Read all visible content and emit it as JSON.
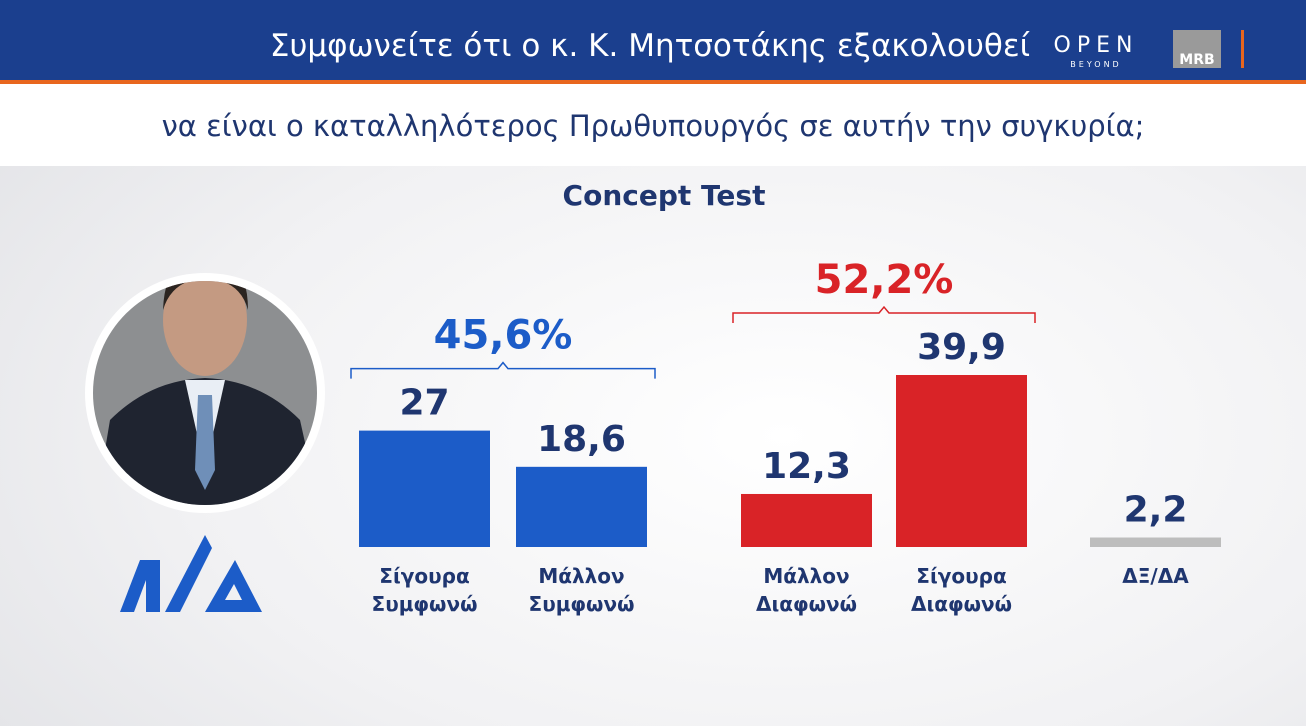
{
  "header": {
    "title": "Συμφωνείτε ότι ο κ. Κ. Μητσοτάκης εξακολουθεί",
    "subtitle": "να είναι ο καταλληλότερος Πρωθυπουργός σε αυτήν την συγκυρία;",
    "logo_main": "OPEN",
    "logo_sub": "BEYOND",
    "logo_mrb": "MRB"
  },
  "chart_data": {
    "type": "bar",
    "title": "Concept Test",
    "categories": [
      "Σίγουρα Συμφωνώ",
      "Μάλλον Συμφωνώ",
      "Μάλλον Διαφωνώ",
      "Σίγουρα Διαφωνώ",
      "ΔΞ/ΔΑ"
    ],
    "values": [
      27,
      18.6,
      12.3,
      39.9,
      2.2
    ],
    "value_labels": [
      "27",
      "18,6",
      "12,3",
      "39,9",
      "2,2"
    ],
    "colors": [
      "#1c5cc8",
      "#1c5cc8",
      "#d92327",
      "#d92327",
      "#bdbdbd"
    ],
    "groups": [
      {
        "value": 45.6,
        "label": "45,6%",
        "color": "#1c5cc8"
      },
      {
        "value": 52.2,
        "label": "52,2%",
        "color": "#d92327"
      }
    ]
  }
}
